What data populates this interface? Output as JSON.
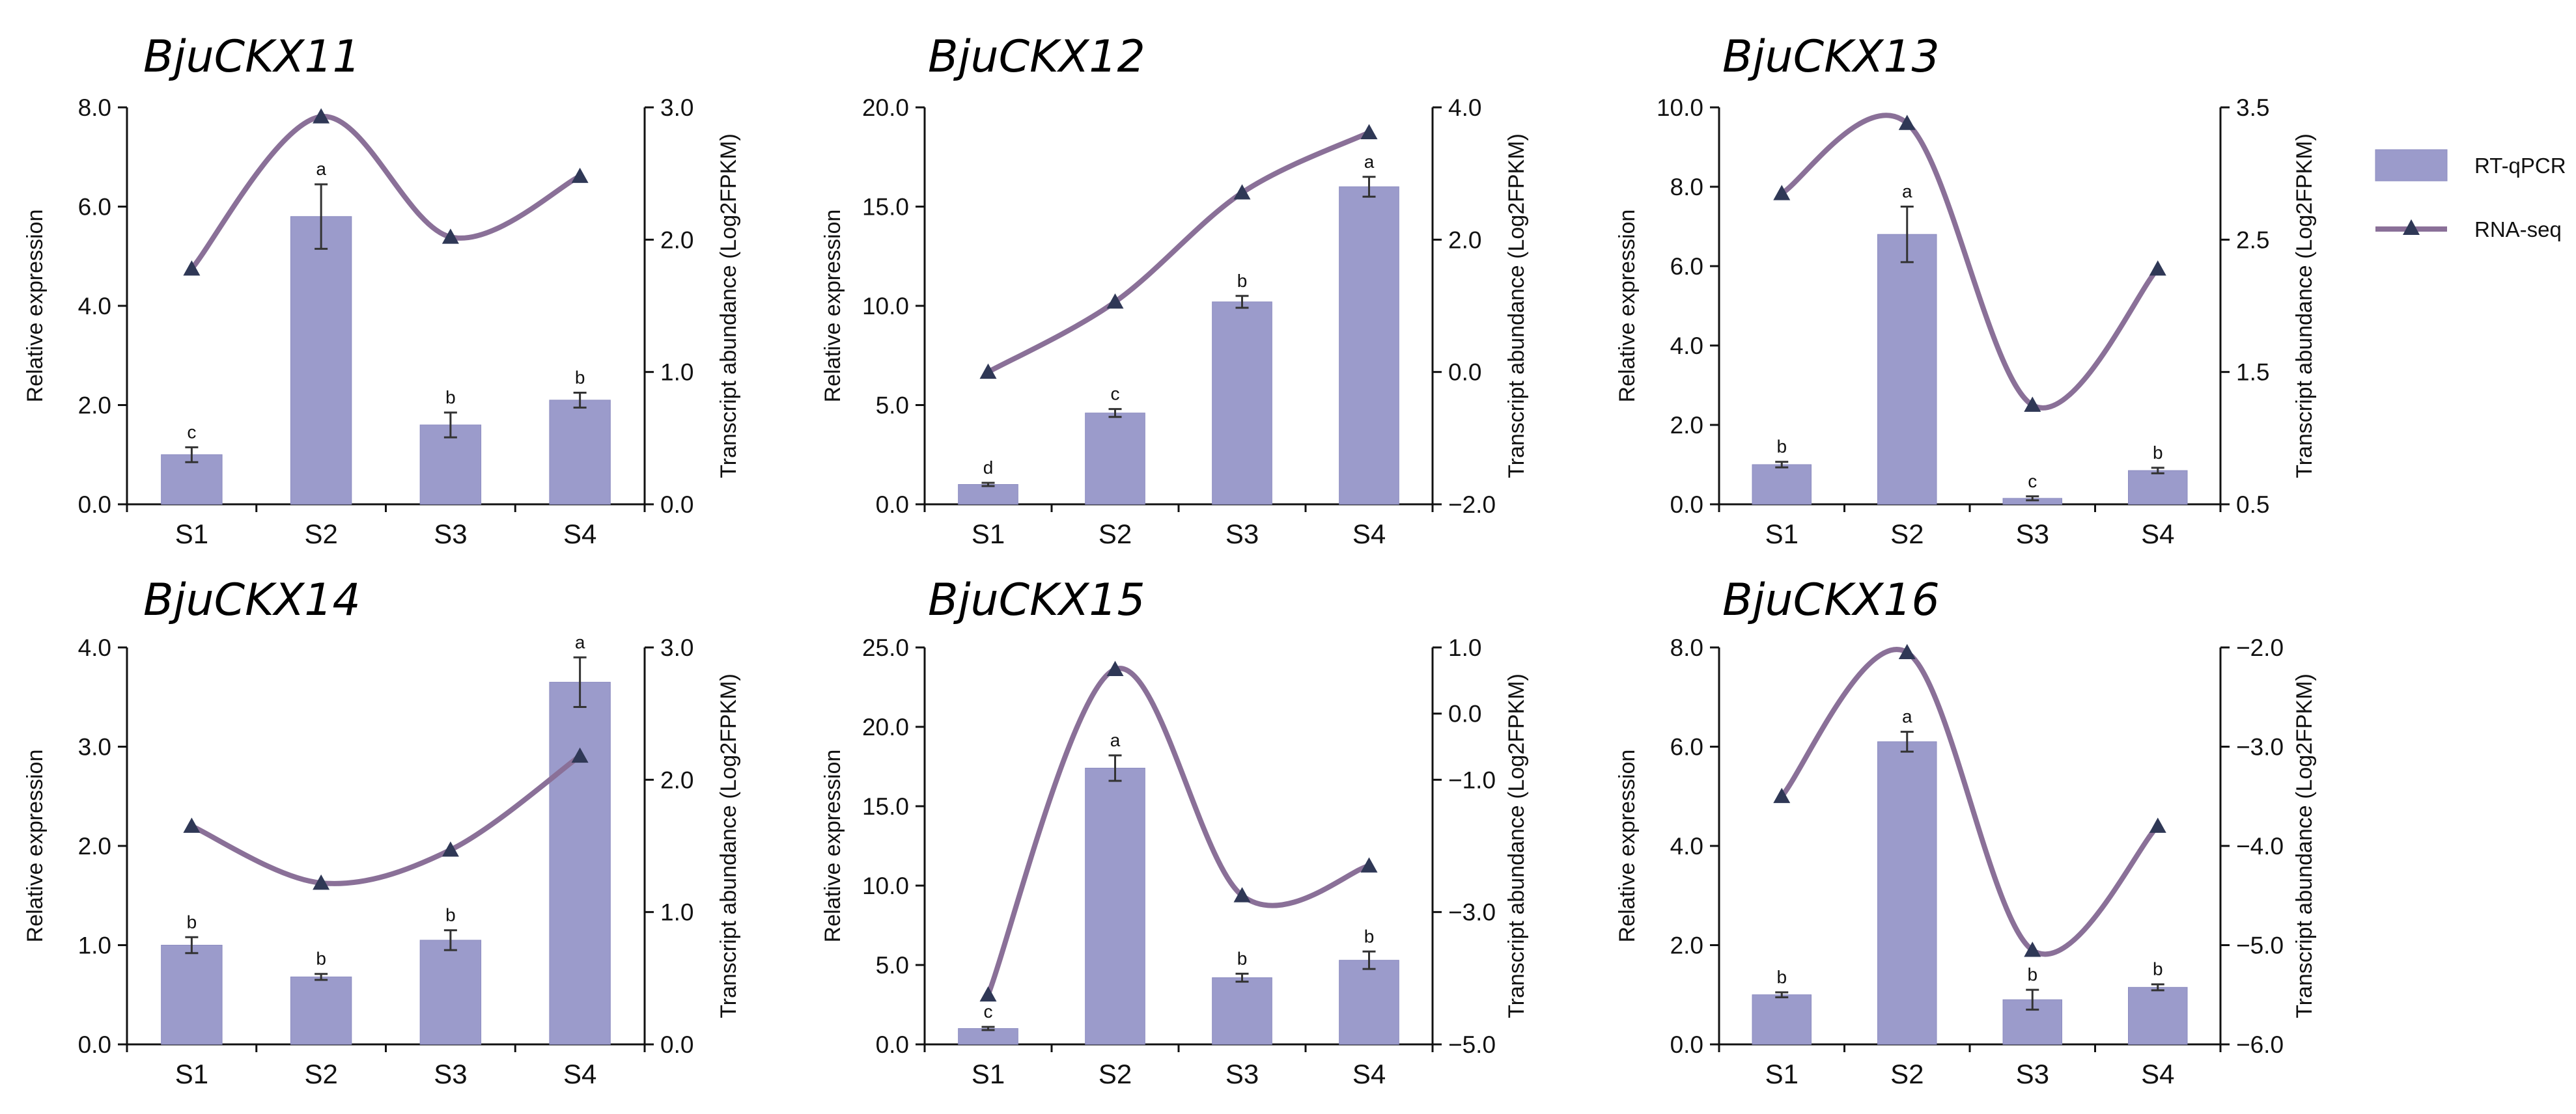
{
  "chart_data": [
    {
      "type": "bar+line",
      "title": "BjuCKX11",
      "categories": [
        "S1",
        "S2",
        "S3",
        "S4"
      ],
      "ylabel": "Relative expression",
      "y2label": "Transcript abundance (Log2FPKM)",
      "ylim": [
        0,
        8
      ],
      "yticks": [
        "0.0",
        "2.0",
        "4.0",
        "6.0",
        "8.0"
      ],
      "y2lim": [
        0,
        3
      ],
      "y2ticks": [
        "0.0",
        "1.0",
        "2.0",
        "3.0"
      ],
      "series": [
        {
          "name": "RT-qPCR",
          "axis": "left",
          "values": [
            1.0,
            5.8,
            1.6,
            2.1
          ],
          "errors": [
            0.15,
            0.65,
            0.25,
            0.15
          ],
          "letters": [
            "c",
            "a",
            "b",
            "b"
          ]
        },
        {
          "name": "RNA-seq",
          "axis": "right",
          "values": [
            1.78,
            2.93,
            2.02,
            2.48
          ]
        }
      ]
    },
    {
      "type": "bar+line",
      "title": "BjuCKX12",
      "categories": [
        "S1",
        "S2",
        "S3",
        "S4"
      ],
      "ylabel": "Relative expression",
      "y2label": "Transcript abundance (Log2FPKM)",
      "ylim": [
        0,
        20
      ],
      "yticks": [
        "0.0",
        "5.0",
        "10.0",
        "15.0",
        "20.0"
      ],
      "y2lim": [
        -2,
        4
      ],
      "y2ticks": [
        "−2.0",
        "0.0",
        "2.0",
        "4.0"
      ],
      "series": [
        {
          "name": "RT-qPCR",
          "axis": "left",
          "values": [
            1.0,
            4.6,
            10.2,
            16.0
          ],
          "errors": [
            0.08,
            0.2,
            0.3,
            0.5
          ],
          "letters": [
            "d",
            "c",
            "b",
            "a"
          ]
        },
        {
          "name": "RNA-seq",
          "axis": "right",
          "values": [
            0.0,
            1.06,
            2.71,
            3.62
          ]
        }
      ]
    },
    {
      "type": "bar+line",
      "title": "BjuCKX13",
      "categories": [
        "S1",
        "S2",
        "S3",
        "S4"
      ],
      "ylabel": "Relative expression",
      "y2label": "Transcript abundance (Log2FPKM)",
      "ylim": [
        0,
        10
      ],
      "yticks": [
        "0.0",
        "2.0",
        "4.0",
        "6.0",
        "8.0",
        "10.0"
      ],
      "y2lim": [
        0.5,
        3.5
      ],
      "y2ticks": [
        "0.5",
        "1.5",
        "2.5",
        "3.5"
      ],
      "series": [
        {
          "name": "RT-qPCR",
          "axis": "left",
          "values": [
            1.0,
            6.8,
            0.15,
            0.85
          ],
          "errors": [
            0.07,
            0.7,
            0.05,
            0.07
          ],
          "letters": [
            "b",
            "a",
            "c",
            "b"
          ]
        },
        {
          "name": "RNA-seq",
          "axis": "right",
          "values": [
            2.85,
            3.38,
            1.25,
            2.28
          ]
        }
      ]
    },
    {
      "type": "bar+line",
      "title": "BjuCKX14",
      "categories": [
        "S1",
        "S2",
        "S3",
        "S4"
      ],
      "ylabel": "Relative expression",
      "y2label": "Transcript abundance (Log2FPKM)",
      "ylim": [
        0,
        4
      ],
      "yticks": [
        "0.0",
        "1.0",
        "2.0",
        "3.0",
        "4.0"
      ],
      "y2lim": [
        0,
        3
      ],
      "y2ticks": [
        "0.0",
        "1.0",
        "2.0",
        "3.0"
      ],
      "series": [
        {
          "name": "RT-qPCR",
          "axis": "left",
          "values": [
            1.0,
            0.68,
            1.05,
            3.65
          ],
          "errors": [
            0.08,
            0.03,
            0.1,
            0.25
          ],
          "letters": [
            "b",
            "b",
            "b",
            "a"
          ]
        },
        {
          "name": "RNA-seq",
          "axis": "right",
          "values": [
            1.65,
            1.22,
            1.47,
            2.18
          ]
        }
      ]
    },
    {
      "type": "bar+line",
      "title": "BjuCKX15",
      "categories": [
        "S1",
        "S2",
        "S3",
        "S4"
      ],
      "ylabel": "Relative expression",
      "y2label": "Transcript abundance (Log2FPKM)",
      "ylim": [
        0,
        25
      ],
      "yticks": [
        "0.0",
        "5.0",
        "10.0",
        "15.0",
        "20.0",
        "25.0"
      ],
      "y2lim": [
        -5,
        1
      ],
      "y2ticks": [
        "−5.0",
        "−3.0",
        "−1.0",
        "0.0",
        "1.0"
      ],
      "y2tickvals": [
        -5,
        -3,
        -1,
        0,
        1
      ],
      "series": [
        {
          "name": "RT-qPCR",
          "axis": "left",
          "values": [
            1.0,
            17.4,
            4.2,
            5.3
          ],
          "errors": [
            0.1,
            0.8,
            0.25,
            0.55
          ],
          "letters": [
            "c",
            "a",
            "b",
            "b"
          ]
        },
        {
          "name": "RNA-seq",
          "axis": "right",
          "values": [
            -4.25,
            0.67,
            -2.75,
            -2.3
          ]
        }
      ]
    },
    {
      "type": "bar+line",
      "title": "BjuCKX16",
      "categories": [
        "S1",
        "S2",
        "S3",
        "S4"
      ],
      "ylabel": "Relative expression",
      "y2label": "Transcript abundance (Log2FPKM)",
      "ylim": [
        0,
        8
      ],
      "yticks": [
        "0.0",
        "2.0",
        "4.0",
        "6.0",
        "8.0"
      ],
      "y2lim": [
        -6,
        -2
      ],
      "y2ticks": [
        "−6.0",
        "−5.0",
        "−4.0",
        "−3.0",
        "−2.0"
      ],
      "series": [
        {
          "name": "RT-qPCR",
          "axis": "left",
          "values": [
            1.0,
            6.1,
            0.9,
            1.15
          ],
          "errors": [
            0.05,
            0.2,
            0.2,
            0.06
          ],
          "letters": [
            "b",
            "a",
            "b",
            "b"
          ]
        },
        {
          "name": "RNA-seq",
          "axis": "right",
          "values": [
            -3.5,
            -2.05,
            -5.05,
            -3.8
          ]
        }
      ]
    }
  ],
  "legend": {
    "items": [
      {
        "label": "RT-qPCR",
        "kind": "bar"
      },
      {
        "label": "RNA-seq",
        "kind": "line"
      }
    ],
    "placement": "right"
  },
  "colors": {
    "bar": "#9b9bcb",
    "bar_edge": "#8c8cc0",
    "line": "#8a7098",
    "marker": "#2f3856",
    "axis": "#111111",
    "error": "#333333"
  }
}
